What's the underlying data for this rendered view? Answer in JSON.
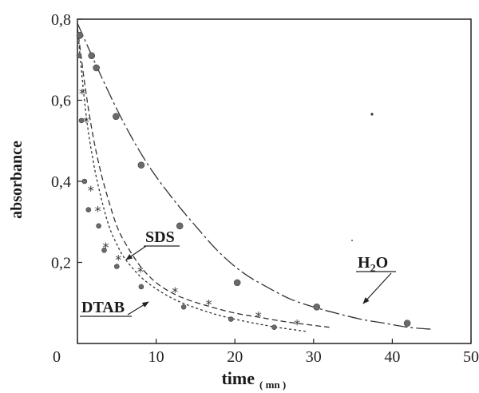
{
  "chart_data": {
    "type": "scatter",
    "xlabel": "time",
    "xlabel_unit": "( mn )",
    "ylabel": "absorbance",
    "xlim": [
      0,
      50
    ],
    "ylim": [
      0,
      0.8
    ],
    "x_ticks": [
      {
        "value": 0,
        "label": "0"
      },
      {
        "value": 10,
        "label": "10"
      },
      {
        "value": 20,
        "label": "20"
      },
      {
        "value": 30,
        "label": "30"
      },
      {
        "value": 40,
        "label": "40"
      },
      {
        "value": 50,
        "label": "50"
      }
    ],
    "y_ticks": [
      {
        "value": 0.2,
        "label": "0,2"
      },
      {
        "value": 0.4,
        "label": "0,4"
      },
      {
        "value": 0.6,
        "label": "0,6"
      },
      {
        "value": 0.8,
        "label": "0,8"
      }
    ],
    "grid": false,
    "series": [
      {
        "name": "H2O",
        "label_main": "H",
        "label_sub": "2",
        "label_tail": "O",
        "marker": "circle",
        "line_style": "dash-dot",
        "x": [
          0.3,
          1.8,
          2.4,
          4.9,
          8.1,
          13.0,
          20.3,
          30.4,
          41.9
        ],
        "y": [
          0.76,
          0.71,
          0.68,
          0.56,
          0.44,
          0.29,
          0.15,
          0.09,
          0.05
        ],
        "fit_x": [
          0,
          3,
          6,
          9,
          12,
          15,
          18,
          21,
          24,
          27,
          30,
          33,
          36,
          39,
          42,
          45
        ],
        "fit_y": [
          0.79,
          0.66,
          0.54,
          0.44,
          0.36,
          0.29,
          0.225,
          0.175,
          0.14,
          0.11,
          0.09,
          0.074,
          0.06,
          0.05,
          0.04,
          0.035
        ]
      },
      {
        "name": "SDS",
        "label_main": "SDS",
        "marker": "star",
        "line_style": "dashed",
        "x": [
          0.6,
          1.1,
          1.7,
          2.6,
          3.6,
          5.2,
          8.0,
          12.4,
          16.7,
          23.0,
          27.9
        ],
        "y": [
          0.62,
          0.55,
          0.38,
          0.33,
          0.24,
          0.21,
          0.18,
          0.13,
          0.1,
          0.07,
          0.05
        ],
        "fit_x": [
          0,
          1,
          2,
          3,
          4,
          5,
          6,
          8,
          10,
          12,
          14,
          17,
          20,
          23,
          26,
          29,
          32
        ],
        "fit_y": [
          0.78,
          0.63,
          0.51,
          0.42,
          0.35,
          0.29,
          0.25,
          0.19,
          0.15,
          0.125,
          0.108,
          0.09,
          0.075,
          0.065,
          0.055,
          0.047,
          0.04
        ]
      },
      {
        "name": "DTAB",
        "label_main": "DTAB",
        "marker": "circle",
        "line_style": "dotted",
        "x": [
          0.2,
          0.5,
          0.9,
          1.4,
          2.7,
          3.4,
          5.0,
          8.1,
          13.5,
          19.5,
          25.0
        ],
        "y": [
          0.71,
          0.55,
          0.4,
          0.33,
          0.29,
          0.23,
          0.19,
          0.14,
          0.09,
          0.06,
          0.04
        ],
        "fit_x": [
          0,
          1,
          2,
          3,
          4,
          5,
          6,
          8,
          10,
          12,
          14,
          17,
          20,
          23,
          26,
          29
        ],
        "fit_y": [
          0.78,
          0.58,
          0.45,
          0.36,
          0.29,
          0.245,
          0.21,
          0.165,
          0.135,
          0.112,
          0.095,
          0.075,
          0.06,
          0.048,
          0.038,
          0.03
        ]
      }
    ]
  }
}
